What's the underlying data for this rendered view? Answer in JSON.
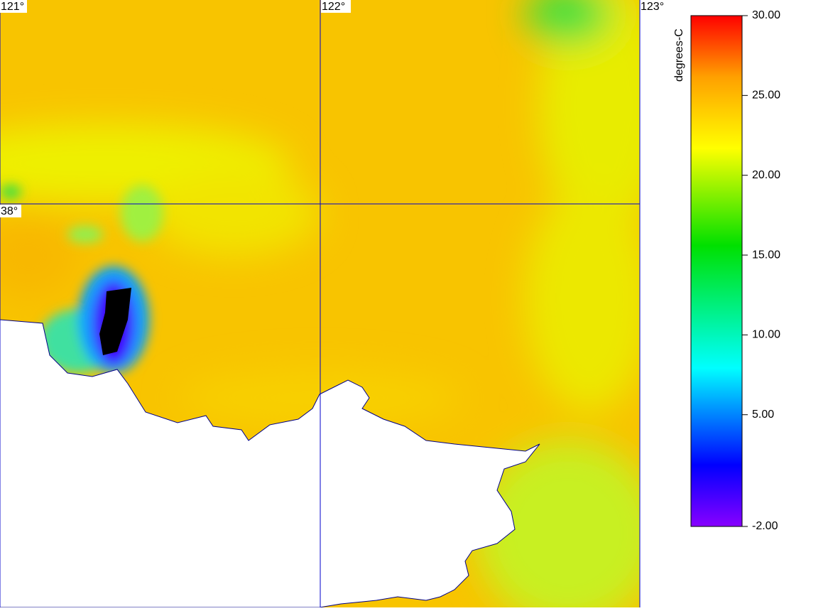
{
  "map": {
    "longitude_labels": [
      "121°",
      "122°",
      "123°"
    ],
    "latitude_labels": [
      "38°"
    ]
  },
  "colorbar": {
    "label": "degrees-C",
    "lim": [
      -2,
      30
    ],
    "ticks": [
      {
        "value": 30,
        "label": "30.00"
      },
      {
        "value": 25,
        "label": "25.00"
      },
      {
        "value": 20,
        "label": "20.00"
      },
      {
        "value": 15,
        "label": "15.00"
      },
      {
        "value": 10,
        "label": "10.00"
      },
      {
        "value": 5,
        "label": "5.00"
      },
      {
        "value": -2,
        "label": "-2.00"
      }
    ]
  }
}
